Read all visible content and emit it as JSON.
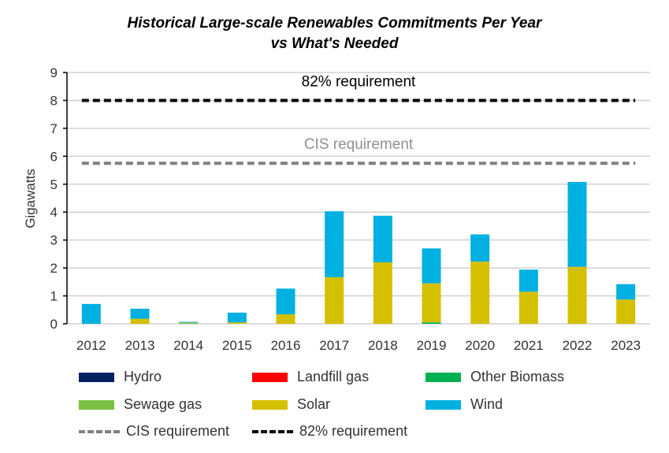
{
  "chart_data": {
    "type": "bar",
    "stacked": true,
    "title": "Historical Large-scale Renewables Commitments Per Year",
    "subtitle": "vs What's Needed",
    "xlabel": "",
    "ylabel": "Gigawatts",
    "ylim": [
      0,
      9
    ],
    "yticks": [
      "0",
      "1",
      "2",
      "3",
      "4",
      "5",
      "6",
      "7",
      "8",
      "9"
    ],
    "grid": true,
    "legend_position": "bottom",
    "categories": [
      "2012",
      "2013",
      "2014",
      "2015",
      "2016",
      "2017",
      "2018",
      "2019",
      "2020",
      "2021",
      "2022",
      "2023"
    ],
    "series": [
      {
        "name": "Hydro",
        "color": "#002060",
        "values": [
          0,
          0,
          0,
          0,
          0,
          0,
          0,
          0,
          0,
          0,
          0,
          0
        ]
      },
      {
        "name": "Landfill gas",
        "color": "#ff0000",
        "values": [
          0,
          0,
          0,
          0,
          0,
          0,
          0,
          0,
          0,
          0,
          0,
          0
        ]
      },
      {
        "name": "Other Biomass",
        "color": "#00b050",
        "values": [
          0,
          0,
          0,
          0,
          0,
          0,
          0,
          0.05,
          0,
          0,
          0,
          0
        ]
      },
      {
        "name": "Sewage gas",
        "color": "#7ac143",
        "values": [
          0,
          0,
          0.05,
          0,
          0,
          0,
          0,
          0,
          0,
          0,
          0,
          0
        ]
      },
      {
        "name": "Solar",
        "color": "#d4c000",
        "values": [
          0,
          0.18,
          0,
          0.05,
          0.34,
          1.67,
          2.2,
          1.4,
          2.23,
          1.15,
          2.04,
          0.87
        ]
      },
      {
        "name": "Wind",
        "color": "#00b0e0",
        "values": [
          0.71,
          0.36,
          0.02,
          0.35,
          0.92,
          2.36,
          1.67,
          1.25,
          0.97,
          0.79,
          3.04,
          0.55
        ]
      }
    ],
    "reference_lines": [
      {
        "name": "CIS requirement",
        "label": "CIS requirement",
        "value": 5.75,
        "color": "#808080"
      },
      {
        "name": "82% requirement",
        "label": "82% requirement",
        "value": 8.0,
        "color": "#000000"
      }
    ]
  }
}
